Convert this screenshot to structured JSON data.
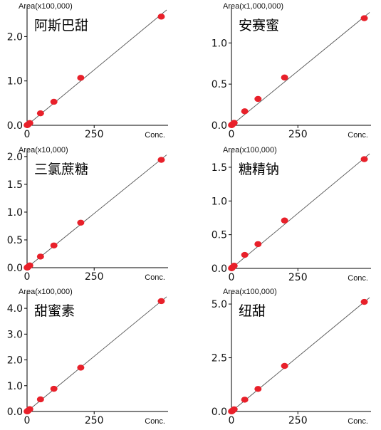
{
  "chart_data": [
    {
      "type": "scatter",
      "title": "阿斯巴甜",
      "unit_label": "Area(x100,000)",
      "xlabel": "Conc.",
      "x_ticks": [
        "0",
        "250"
      ],
      "y_ticks": [
        "0.0",
        "1.0",
        "2.0"
      ],
      "xlim": [
        0,
        520
      ],
      "ylim": [
        0,
        2.6
      ],
      "series": [
        {
          "x": [
            0.5,
            1,
            2.5,
            5,
            10,
            50,
            100,
            200,
            500
          ],
          "y": [
            0.003,
            0.005,
            0.013,
            0.025,
            0.05,
            0.27,
            0.53,
            1.07,
            2.45
          ]
        }
      ],
      "fit_line": {
        "x": [
          0,
          520
        ],
        "y": [
          0,
          2.6
        ]
      },
      "grid": false
    },
    {
      "type": "scatter",
      "title": "安赛蜜",
      "unit_label": "Area(x1,000,000)",
      "xlabel": "Conc.",
      "x_ticks": [
        "0",
        "250"
      ],
      "y_ticks": [
        "0.0",
        "0.5",
        "1.0"
      ],
      "xlim": [
        0,
        520
      ],
      "ylim": [
        0,
        1.4
      ],
      "series": [
        {
          "x": [
            0.5,
            1,
            2.5,
            5,
            10,
            50,
            100,
            200,
            500
          ],
          "y": [
            0.002,
            0.003,
            0.008,
            0.015,
            0.03,
            0.17,
            0.32,
            0.58,
            1.3
          ]
        }
      ],
      "fit_line": {
        "x": [
          0,
          520
        ],
        "y": [
          0,
          1.37
        ]
      },
      "grid": false
    },
    {
      "type": "scatter",
      "title": "三氯蔗糖",
      "unit_label": "Area(x10,000)",
      "xlabel": "Conc.",
      "x_ticks": [
        "0",
        "250"
      ],
      "y_ticks": [
        "0.0",
        "0.5",
        "1.0",
        "1.5",
        "2.0"
      ],
      "xlim": [
        0,
        520
      ],
      "ylim": [
        0,
        2.05
      ],
      "series": [
        {
          "x": [
            0.5,
            1,
            2.5,
            5,
            10,
            50,
            100,
            200,
            500
          ],
          "y": [
            0.002,
            0.004,
            0.01,
            0.02,
            0.04,
            0.2,
            0.4,
            0.81,
            1.94
          ]
        }
      ],
      "fit_line": {
        "x": [
          0,
          520
        ],
        "y": [
          0,
          2.03
        ]
      },
      "grid": false
    },
    {
      "type": "scatter",
      "title": "糖精钠",
      "unit_label": "Area(x100,000)",
      "xlabel": "Conc.",
      "x_ticks": [
        "0",
        "250"
      ],
      "y_ticks": [
        "0.0",
        "0.5",
        "1.0",
        "1.5"
      ],
      "xlim": [
        0,
        520
      ],
      "ylim": [
        0,
        1.7
      ],
      "series": [
        {
          "x": [
            0.5,
            1,
            2.5,
            5,
            10,
            50,
            100,
            200,
            500
          ],
          "y": [
            0.002,
            0.004,
            0.01,
            0.02,
            0.04,
            0.2,
            0.36,
            0.71,
            1.62
          ]
        }
      ],
      "fit_line": {
        "x": [
          0,
          520
        ],
        "y": [
          0,
          1.7
        ]
      },
      "grid": false
    },
    {
      "type": "scatter",
      "title": "甜蜜素",
      "unit_label": "Area(x100,000)",
      "xlabel": "Conc.",
      "x_ticks": [
        "0",
        "250"
      ],
      "y_ticks": [
        "0.0",
        "1.0",
        "2.0",
        "3.0",
        "4.0"
      ],
      "xlim": [
        0,
        520
      ],
      "ylim": [
        0,
        4.5
      ],
      "series": [
        {
          "x": [
            0.5,
            1,
            2.5,
            5,
            10,
            50,
            100,
            200,
            500
          ],
          "y": [
            0.004,
            0.009,
            0.022,
            0.044,
            0.09,
            0.47,
            0.88,
            1.7,
            4.28
          ]
        }
      ],
      "fit_line": {
        "x": [
          0,
          520
        ],
        "y": [
          0,
          4.45
        ]
      },
      "grid": false
    },
    {
      "type": "scatter",
      "title": "纽甜",
      "unit_label": "Area(x100,000)",
      "xlabel": "Conc.",
      "x_ticks": [
        "0",
        "250"
      ],
      "y_ticks": [
        "0.0",
        "2.5",
        "5.0"
      ],
      "xlim": [
        0,
        520
      ],
      "ylim": [
        0,
        5.4
      ],
      "series": [
        {
          "x": [
            0.5,
            1,
            2.5,
            5,
            10,
            50,
            100,
            200,
            500
          ],
          "y": [
            0.005,
            0.01,
            0.025,
            0.05,
            0.1,
            0.55,
            1.05,
            2.12,
            5.1
          ]
        }
      ],
      "fit_line": {
        "x": [
          0,
          520
        ],
        "y": [
          0,
          5.3
        ]
      },
      "grid": false
    }
  ]
}
